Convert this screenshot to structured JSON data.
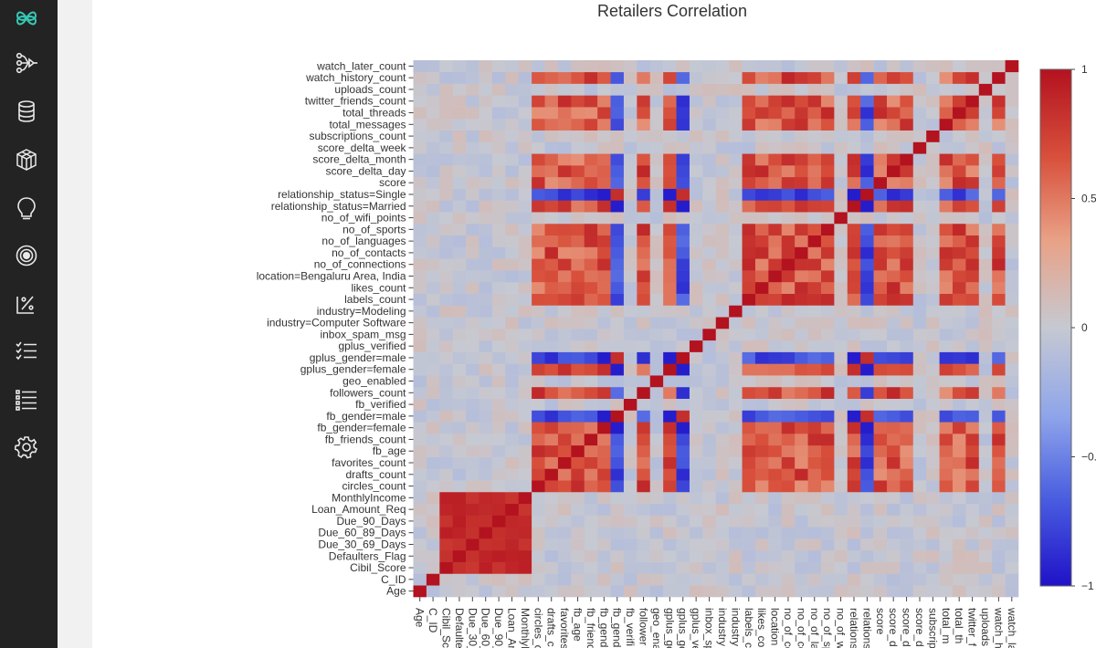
{
  "sidebar": {
    "items": [
      {
        "icon": "logo-icon"
      },
      {
        "icon": "pipeline-icon"
      },
      {
        "icon": "database-icon"
      },
      {
        "icon": "cube-icon"
      },
      {
        "icon": "bulb-icon"
      },
      {
        "icon": "target-icon"
      },
      {
        "icon": "percent-icon"
      },
      {
        "icon": "checklist-icon"
      },
      {
        "icon": "list-icon"
      },
      {
        "icon": "settings-icon"
      }
    ],
    "accent": "#35c9b5"
  },
  "chart_data": {
    "type": "heatmap",
    "title": "Retailers Correlation",
    "xlabel": "",
    "ylabel": "",
    "variables": [
      "Age",
      "C_ID",
      "Cibil_Score",
      "Defaulters_Flag",
      "Due_30_69_Days",
      "Due_60_89_Days",
      "Due_90_Days",
      "Loan_Amount_Req",
      "MonthlyIncome",
      "circles_count",
      "drafts_count",
      "favorites_count",
      "fb_age",
      "fb_friends_count",
      "fb_gender=female",
      "fb_gender=male",
      "fb_verified",
      "followers_count",
      "geo_enabled",
      "gplus_gender=female",
      "gplus_gender=male",
      "gplus_verified",
      "inbox_spam_msg",
      "industry=Computer Software",
      "industry=Modeling",
      "labels_count",
      "likes_count",
      "location=Bengaluru Area, India",
      "no_of_connections",
      "no_of_contacts",
      "no_of_languages",
      "no_of_sports",
      "no_of_wifi_points",
      "relationship_status=Married",
      "relationship_status=Single",
      "score",
      "score_delta_day",
      "score_delta_month",
      "score_delta_week",
      "subscriptions_count",
      "total_messages",
      "total_threads",
      "twitter_friends_count",
      "uploads_count",
      "watch_history_count",
      "watch_later_count"
    ],
    "x_tick_labels": [
      "Age",
      "C_ID",
      "Cibil_Sco",
      "Defaulte",
      "Due_30_",
      "Due_60_",
      "Due_90_",
      "Loan_Am",
      "MonthlyI",
      "circles_c",
      "drafts_c",
      "favorites",
      "fb_age",
      "fb_friend",
      "fb_gend",
      "fb_gend",
      "fb_verifi",
      "follower",
      "geo_ena",
      "gplus_ge",
      "gplus_ge",
      "gplus_ve",
      "inbox_sp",
      "industry",
      "industry",
      "labels_c",
      "likes_co",
      "location",
      "no_of_co",
      "no_of_co",
      "no_of_la",
      "no_of_sp",
      "no_of_w",
      "relations",
      "relations",
      "score",
      "score_d",
      "score_d",
      "score_d",
      "subscrip",
      "total_m",
      "total_th",
      "twitter_f",
      "uploads",
      "watch_h",
      "watch_la"
    ],
    "groups": {
      "A": [
        9,
        10,
        11,
        12,
        13,
        17,
        25,
        26,
        27,
        28,
        29,
        30,
        31,
        35,
        36,
        37,
        40,
        41,
        42,
        44
      ],
      "B": [
        14,
        19,
        33
      ],
      "C": [
        15,
        20,
        34
      ],
      "L": [
        2,
        3,
        4,
        5,
        6,
        7,
        8
      ]
    },
    "colorbar": {
      "min": -1,
      "max": 1,
      "ticks": [
        1,
        0.5,
        0,
        -0.5,
        -1
      ],
      "tick_labels": [
        "1",
        "0.5",
        "0",
        "−0.5",
        "−1"
      ]
    },
    "colorscale": [
      "#1f12c8",
      "#4a5ee0",
      "#8fa5ea",
      "#c6c9d2",
      "#e9a186",
      "#d8503c",
      "#b3121f"
    ],
    "grid": false,
    "legend": "colorbar-right"
  }
}
